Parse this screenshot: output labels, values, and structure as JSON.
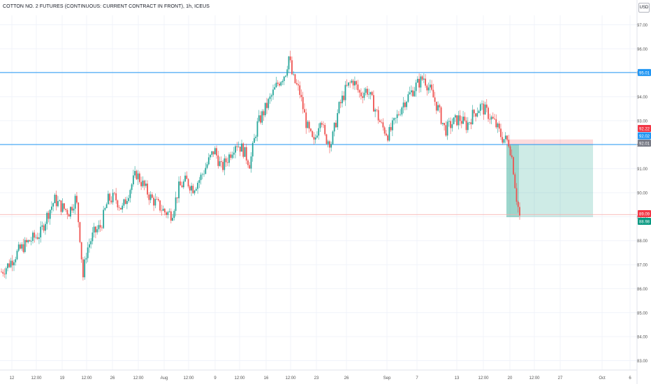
{
  "header": {
    "title": "COTTON NO. 2 FUTURES (CONTINUOUS: CURRENT CONTRACT IN FRONT), 1h, ICEUS",
    "currency": "USD"
  },
  "colors": {
    "up": "#26a69a",
    "down": "#ef5350",
    "level_line": "#2196f3",
    "grid": "#f0f3fa",
    "stop_zone": "rgba(242,54,69,0.18)",
    "target_zone": "rgba(8,153,129,0.20)",
    "entry_label": "#787b86",
    "stop_label": "#f23645",
    "target_label": "#089981"
  },
  "chart_data": {
    "type": "candlestick",
    "title": "COTTON NO. 2 FUTURES (CONTINUOUS: CURRENT CONTRACT IN FRONT), 1h, ICEUS",
    "ylim": [
      82.6,
      97.6
    ],
    "y_ticks": [
      "97.00",
      "96.00",
      "95.00",
      "94.00",
      "93.00",
      "92.00",
      "91.00",
      "90.00",
      "89.00",
      "88.00",
      "87.00",
      "86.00",
      "85.00",
      "84.00",
      "83.00"
    ],
    "x_ticks": [
      "12",
      "12:00",
      "19",
      "12:00",
      "26",
      "12:00",
      "Aug",
      "12:00",
      "9",
      "12:00",
      "16",
      "12:00",
      "23",
      "26",
      "Sep",
      "7",
      "13",
      "12:00",
      "20",
      "12:00",
      "27",
      "Oct",
      "6"
    ],
    "grid": true,
    "price_path": [
      [
        0,
        86.7
      ],
      [
        2,
        87.0
      ],
      [
        5,
        87.6
      ],
      [
        8,
        88.0
      ],
      [
        11,
        88.3
      ],
      [
        13,
        89.1
      ],
      [
        15,
        89.7
      ],
      [
        17,
        89.4
      ],
      [
        19,
        89.2
      ],
      [
        21,
        89.8
      ],
      [
        22,
        88.4
      ],
      [
        23,
        86.5
      ],
      [
        24,
        87.6
      ],
      [
        26,
        88.3
      ],
      [
        28,
        88.6
      ],
      [
        30,
        89.7
      ],
      [
        32,
        89.8
      ],
      [
        34,
        89.3
      ],
      [
        36,
        90.1
      ],
      [
        38,
        90.8
      ],
      [
        40,
        90.3
      ],
      [
        42,
        89.8
      ],
      [
        44,
        89.5
      ],
      [
        46,
        89.2
      ],
      [
        48,
        89.1
      ],
      [
        50,
        90.2
      ],
      [
        52,
        90.5
      ],
      [
        54,
        90.2
      ],
      [
        56,
        90.6
      ],
      [
        58,
        91.2
      ],
      [
        60,
        91.8
      ],
      [
        62,
        91.0
      ],
      [
        64,
        91.5
      ],
      [
        66,
        92.1
      ],
      [
        68,
        91.8
      ],
      [
        70,
        91.2
      ],
      [
        72,
        92.8
      ],
      [
        74,
        93.4
      ],
      [
        76,
        94.0
      ],
      [
        78,
        94.6
      ],
      [
        80,
        95.0
      ],
      [
        81,
        95.7
      ],
      [
        82,
        94.8
      ],
      [
        84,
        94.2
      ],
      [
        86,
        92.8
      ],
      [
        88,
        92.0
      ],
      [
        90,
        93.3
      ],
      [
        91,
        92.3
      ],
      [
        93,
        92.1
      ],
      [
        95,
        93.5
      ],
      [
        97,
        94.3
      ],
      [
        99,
        94.7
      ],
      [
        101,
        94.1
      ],
      [
        103,
        94.3
      ],
      [
        105,
        93.6
      ],
      [
        107,
        92.8
      ],
      [
        109,
        92.4
      ],
      [
        111,
        93.0
      ],
      [
        113,
        93.7
      ],
      [
        115,
        94.1
      ],
      [
        117,
        94.5
      ],
      [
        119,
        94.8
      ],
      [
        121,
        94.2
      ],
      [
        123,
        93.5
      ],
      [
        125,
        92.6
      ],
      [
        127,
        92.9
      ],
      [
        129,
        93.1
      ],
      [
        131,
        92.8
      ],
      [
        133,
        93.3
      ],
      [
        135,
        93.6
      ],
      [
        137,
        93.3
      ],
      [
        139,
        92.9
      ],
      [
        141,
        92.3
      ],
      [
        143,
        92.1
      ],
      [
        144,
        91.3
      ],
      [
        145,
        89.9
      ],
      [
        146,
        89.0
      ]
    ],
    "series_end_index": 146,
    "levels": [
      {
        "name": "resistance",
        "value": 95.01,
        "label": "95.01"
      },
      {
        "name": "support",
        "value": 92.01,
        "label": "92.01"
      },
      {
        "name": "target",
        "value": 89.09
      }
    ],
    "position": {
      "type": "short",
      "entry": 92.02,
      "stop": 92.22,
      "target": 88.98,
      "current": 89.09
    },
    "price_labels": [
      {
        "text": "95.01",
        "value": 95.01,
        "color": "#2196f3"
      },
      {
        "text": "92.22",
        "value": 92.22,
        "color": "#f23645"
      },
      {
        "text": "92.02",
        "value": 92.02,
        "color": "#2196f3"
      },
      {
        "text": "92.01",
        "value": 92.01,
        "color": "#787b86"
      },
      {
        "text": "89.09",
        "value": 89.09,
        "color": "#f23645"
      },
      {
        "text": "88.98",
        "value": 88.98,
        "color": "#089981"
      }
    ]
  }
}
